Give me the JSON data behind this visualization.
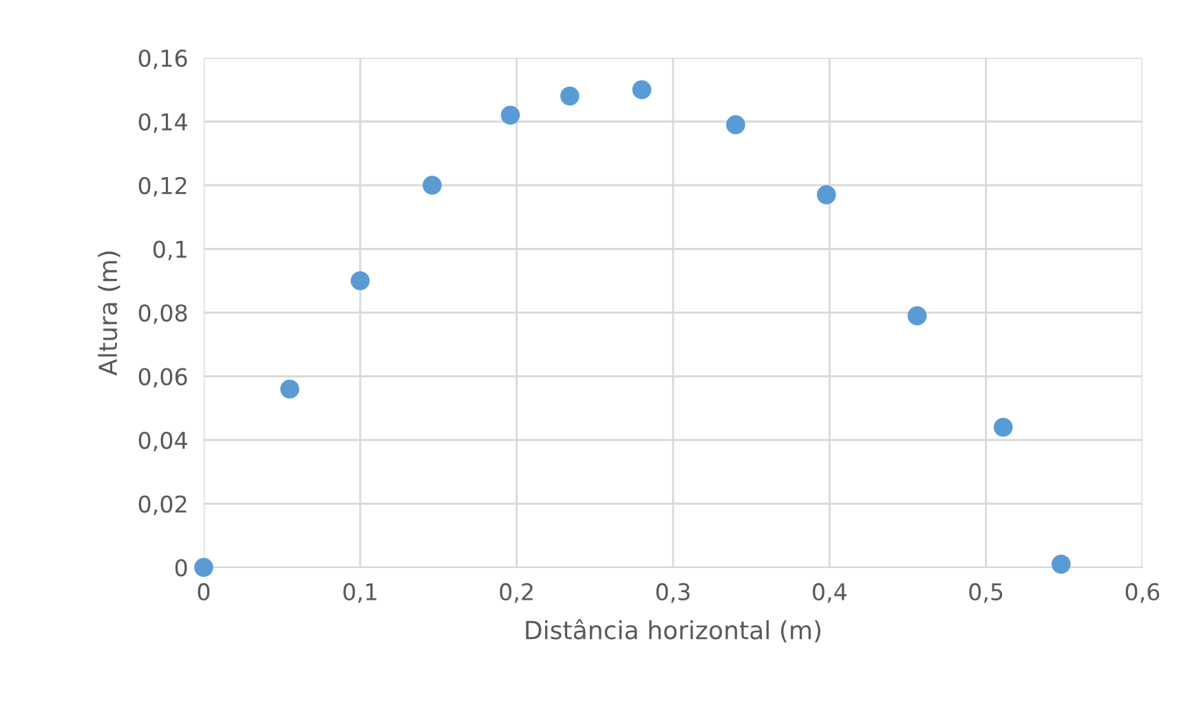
{
  "chart_data": {
    "type": "scatter",
    "xlabel": "Distância horizontal (m)",
    "ylabel": "Altura (m)",
    "x": [
      0,
      0.055,
      0.1,
      0.146,
      0.196,
      0.234,
      0.28,
      0.34,
      0.398,
      0.456,
      0.511,
      0.548
    ],
    "series": [
      {
        "color": "#5b9bd5",
        "values": [
          0,
          0.056,
          0.09,
          0.12,
          0.142,
          0.148,
          0.15,
          0.139,
          0.117,
          0.079,
          0.044,
          0.001
        ]
      }
    ],
    "xlim": [
      0,
      0.6
    ],
    "ylim": [
      0,
      0.16
    ],
    "xticks": [
      0,
      {
        "value": 0.1,
        "label": "0,1"
      },
      {
        "value": 0.2,
        "label": "0,2"
      },
      {
        "value": 0.3,
        "label": "0,3"
      },
      {
        "value": 0.4,
        "label": "0,4"
      },
      {
        "value": 0.5,
        "label": "0,5"
      },
      {
        "value": 0.6,
        "label": "0,6"
      }
    ],
    "yticks": [
      0,
      {
        "value": 0.02,
        "label": "0,02"
      },
      {
        "value": 0.04,
        "label": "0,04"
      },
      {
        "value": 0.06,
        "label": "0,06"
      },
      {
        "value": 0.08,
        "label": "0,08"
      },
      {
        "value": 0.1,
        "label": "0,1"
      },
      {
        "value": 0.12,
        "label": "0,12"
      },
      {
        "value": 0.14,
        "label": "0,14"
      },
      {
        "value": 0.16,
        "label": "0,16"
      }
    ],
    "grid": true,
    "marker": "circle"
  }
}
